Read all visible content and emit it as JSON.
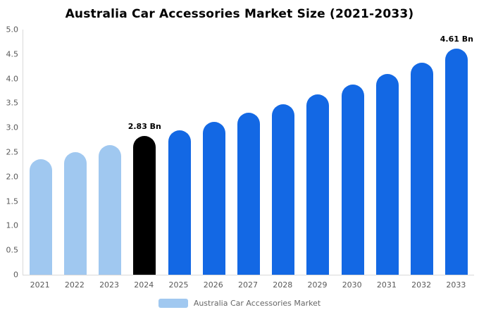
{
  "title": "Australia Car Accessories Market Size (2021-2033)",
  "legend": {
    "label": "Australia Car Accessories Market",
    "swatch_color": "#a0c8f0"
  },
  "colors": {
    "light": "#a0c8f0",
    "primary": "#1368e4",
    "highlight": "#000000",
    "axis_line": "#d9d9d9",
    "tick_text": "#595959"
  },
  "chart_data": {
    "type": "bar",
    "title": "Australia Car Accessories Market Size (2021-2033)",
    "xlabel": "",
    "ylabel": "",
    "ylim": [
      0,
      5
    ],
    "grid": false,
    "legend_position": "bottom",
    "yticks": [
      {
        "label": "5.0",
        "value": 5.0
      },
      {
        "label": "4.5",
        "value": 4.5
      },
      {
        "label": "4.0",
        "value": 4.0
      },
      {
        "label": "3.5",
        "value": 3.5
      },
      {
        "label": "3.0",
        "value": 3.0
      },
      {
        "label": "2.5",
        "value": 2.5
      },
      {
        "label": "2.0",
        "value": 2.0
      },
      {
        "label": "1.5",
        "value": 1.5
      },
      {
        "label": "1.0",
        "value": 1.0
      },
      {
        "label": "0.5",
        "value": 0.5
      },
      {
        "label": "0",
        "value": 0
      }
    ],
    "categories": [
      "2021",
      "2022",
      "2023",
      "2024",
      "2025",
      "2026",
      "2027",
      "2028",
      "2029",
      "2030",
      "2031",
      "2032",
      "2033"
    ],
    "bars": [
      {
        "label": "2021",
        "value": 2.36,
        "color_key": "light",
        "annotation": ""
      },
      {
        "label": "2022",
        "value": 2.5,
        "color_key": "light",
        "annotation": ""
      },
      {
        "label": "2023",
        "value": 2.65,
        "color_key": "light",
        "annotation": ""
      },
      {
        "label": "2024",
        "value": 2.83,
        "color_key": "highlight",
        "annotation": "2.83 Bn"
      },
      {
        "label": "2025",
        "value": 2.95,
        "color_key": "primary",
        "annotation": ""
      },
      {
        "label": "2026",
        "value": 3.12,
        "color_key": "primary",
        "annotation": ""
      },
      {
        "label": "2027",
        "value": 3.3,
        "color_key": "primary",
        "annotation": ""
      },
      {
        "label": "2028",
        "value": 3.48,
        "color_key": "primary",
        "annotation": ""
      },
      {
        "label": "2029",
        "value": 3.68,
        "color_key": "primary",
        "annotation": ""
      },
      {
        "label": "2030",
        "value": 3.88,
        "color_key": "primary",
        "annotation": ""
      },
      {
        "label": "2031",
        "value": 4.1,
        "color_key": "primary",
        "annotation": ""
      },
      {
        "label": "2032",
        "value": 4.33,
        "color_key": "primary",
        "annotation": ""
      },
      {
        "label": "2033",
        "value": 4.61,
        "color_key": "primary",
        "annotation": "4.61 Bn"
      }
    ]
  }
}
